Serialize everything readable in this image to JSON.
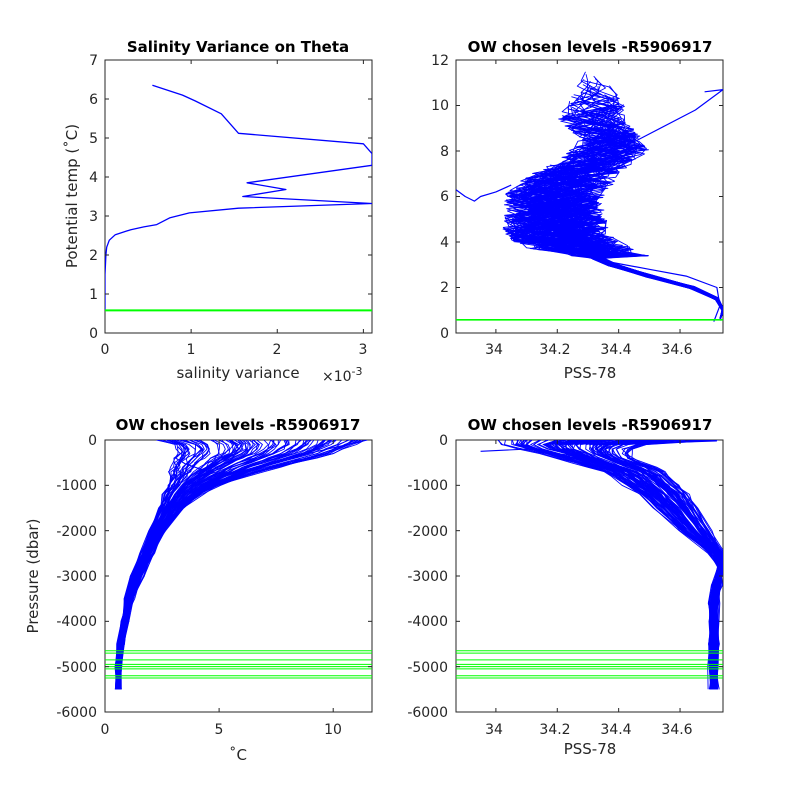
{
  "colors": {
    "profile": "#0000ff",
    "chosen_levels": "#00ff00",
    "axes": "#262626"
  },
  "chart_data": [
    {
      "type": "line",
      "title": "Salinity Variance on Theta",
      "xlabel": "salinity variance",
      "x_multiplier_label": "×10",
      "x_multiplier_exponent": "-3",
      "ylabel": "Potential temp (˚C)",
      "xlim": [
        0,
        3.1
      ],
      "ylim": [
        0,
        7
      ],
      "xticks": [
        0,
        1,
        2,
        3
      ],
      "yticks": [
        0,
        1,
        2,
        3,
        4,
        5,
        6,
        7
      ],
      "grid": false,
      "series": [
        {
          "role": "variance_profile",
          "color": "#0000ff",
          "x": [
            0.55,
            0.9,
            1.05,
            1.35,
            1.55,
            3.0,
            3.1,
            3.1,
            1.65,
            2.1,
            1.6,
            3.1,
            1.55,
            0.98,
            0.75,
            0.6,
            0.45,
            0.3,
            0.12,
            0.05,
            0.02,
            0.01,
            0.0,
            0.0
          ],
          "y": [
            6.35,
            6.1,
            5.95,
            5.62,
            5.12,
            4.85,
            4.6,
            4.3,
            3.85,
            3.68,
            3.5,
            3.32,
            3.2,
            3.08,
            2.95,
            2.78,
            2.72,
            2.65,
            2.52,
            2.38,
            2.2,
            2.0,
            1.5,
            0.6
          ]
        },
        {
          "role": "chosen_level",
          "color": "#00ff00",
          "y": [
            0.58
          ]
        }
      ]
    },
    {
      "type": "line",
      "title": "OW chosen levels -R5906917",
      "xlabel": "PSS-78",
      "ylabel": "",
      "xlim": [
        33.87,
        34.74
      ],
      "ylim": [
        0,
        12
      ],
      "xticks": [
        "34",
        "34.2",
        "34.4",
        "34.6"
      ],
      "ytick_values": [
        0,
        2,
        4,
        6,
        8,
        10,
        12
      ],
      "grid": false,
      "envelope": {
        "y": [
          3.3,
          3.6,
          4.0,
          4.5,
          5.0,
          5.5,
          6.0,
          6.5,
          7.0,
          7.5,
          8.0,
          8.5,
          9.0,
          9.5,
          10.0,
          10.5,
          11.0,
          11.5
        ],
        "s_left": [
          34.24,
          34.0,
          33.94,
          33.9,
          33.91,
          33.93,
          33.89,
          33.95,
          34.02,
          34.1,
          34.15,
          34.2,
          34.16,
          34.12,
          34.17,
          34.2,
          34.24,
          34.26
        ],
        "s_right": [
          34.5,
          34.5,
          34.4,
          34.37,
          34.36,
          34.35,
          34.35,
          34.38,
          34.4,
          34.45,
          34.5,
          34.48,
          34.45,
          34.42,
          34.42,
          34.4,
          34.36,
          34.32
        ]
      },
      "trunk": {
        "y": [
          0.6,
          1.0,
          1.5,
          2.0,
          2.5,
          3.0,
          3.3
        ],
        "s": [
          34.73,
          34.74,
          34.72,
          34.64,
          34.5,
          34.38,
          34.33
        ]
      },
      "chosen_levels": [
        0.58
      ],
      "series": [
        {
          "x": [
            34.71,
            34.73,
            34.72,
            34.62,
            34.5,
            34.38,
            34.3
          ],
          "y": [
            0.5,
            1.2,
            2.0,
            2.5,
            2.8,
            3.1,
            3.4
          ]
        },
        {
          "x": [
            33.87,
            33.9,
            33.93,
            33.95,
            34.0,
            34.05
          ],
          "y": [
            6.3,
            6.0,
            5.8,
            6.0,
            6.2,
            6.5
          ]
        },
        {
          "x": [
            34.3,
            34.45,
            34.65,
            34.74,
            34.68
          ],
          "y": [
            7.6,
            8.4,
            9.8,
            10.7,
            10.6
          ]
        }
      ]
    },
    {
      "type": "line",
      "title": "OW chosen levels -R5906917",
      "xlabel": "˚C",
      "ylabel": "Pressure (dbar)",
      "xlim": [
        0,
        11.7
      ],
      "ylim": [
        -6000,
        0
      ],
      "xticks": [
        0,
        5,
        10
      ],
      "yticks": [
        -6000,
        -5000,
        -4000,
        -3000,
        -2000,
        -1000,
        0
      ],
      "grid": false,
      "envelope": {
        "p": [
          0,
          -100,
          -200,
          -300,
          -400,
          -500,
          -600,
          -700,
          -800,
          -1000,
          -1200,
          -1500,
          -2000,
          -2500,
          -3000,
          -3500,
          -4000,
          -4500,
          -5000,
          -5500
        ],
        "t_left": [
          2.3,
          3.0,
          3.2,
          3.2,
          3.1,
          3.0,
          2.95,
          2.9,
          2.85,
          2.75,
          2.6,
          2.4,
          2.0,
          1.6,
          1.2,
          0.95,
          0.8,
          0.6,
          0.55,
          0.55
        ],
        "t_right": [
          11.5,
          11.0,
          10.5,
          10.0,
          9.2,
          8.4,
          7.6,
          6.9,
          6.2,
          5.0,
          4.2,
          3.4,
          2.6,
          2.1,
          1.6,
          1.2,
          0.95,
          0.75,
          0.62,
          0.6
        ]
      },
      "chosen_levels": [
        -4650,
        -4700,
        -4850,
        -4950,
        -5000,
        -5050,
        -5200,
        -5250
      ],
      "series": [
        {
          "x": [
            11.5,
            8.0,
            5.0,
            3.2,
            2.4,
            1.5,
            0.9,
            0.6,
            0.55
          ],
          "y": [
            0,
            -400,
            -900,
            -1400,
            -2000,
            -3000,
            -3800,
            -4600,
            -5500
          ]
        },
        {
          "x": [
            3.2,
            3.4,
            3.1,
            3.5,
            4.5
          ],
          "y": [
            -150,
            -260,
            -400,
            -520,
            -700
          ]
        }
      ]
    },
    {
      "type": "line",
      "title": "OW chosen levels -R5906917",
      "xlabel": "PSS-78",
      "ylabel": "",
      "xlim": [
        33.87,
        34.74
      ],
      "ylim": [
        -6000,
        0
      ],
      "xticks": [
        "34",
        "34.2",
        "34.4",
        "34.6"
      ],
      "ytick_values": [
        -6000,
        -5000,
        -4000,
        -3000,
        -2000,
        -1000,
        0
      ],
      "grid": false,
      "envelope": {
        "p": [
          0,
          -100,
          -200,
          -300,
          -400,
          -500,
          -600,
          -700,
          -800,
          -1000,
          -1200,
          -1500,
          -2000,
          -2500,
          -2800,
          -3200,
          -3600,
          -4000,
          -4500,
          -5000,
          -5500
        ],
        "s_left": [
          34.0,
          34.02,
          34.08,
          34.15,
          34.2,
          34.25,
          34.3,
          34.35,
          34.38,
          34.42,
          34.47,
          34.52,
          34.6,
          34.7,
          34.73,
          34.71,
          34.7,
          34.7,
          34.7,
          34.7,
          34.7
        ],
        "s_right": [
          34.72,
          34.5,
          34.45,
          34.44,
          34.45,
          34.48,
          34.52,
          34.55,
          34.57,
          34.6,
          34.63,
          34.66,
          34.7,
          34.74,
          34.74,
          34.73,
          34.72,
          34.72,
          34.72,
          34.72,
          34.72
        ]
      },
      "chosen_levels": [
        -4650,
        -4700,
        -4850,
        -4950,
        -5000,
        -5050,
        -5200,
        -5250
      ],
      "series": [
        {
          "x": [
            33.95,
            34.1,
            34.3,
            34.45,
            34.6,
            34.73,
            34.72,
            34.71,
            34.71
          ],
          "y": [
            -250,
            -200,
            -400,
            -900,
            -1700,
            -2500,
            -3200,
            -4500,
            -5500
          ]
        },
        {
          "x": [
            34.2,
            34.35,
            34.55,
            34.72
          ],
          "y": [
            -50,
            -100,
            -60,
            -20
          ]
        }
      ]
    }
  ]
}
